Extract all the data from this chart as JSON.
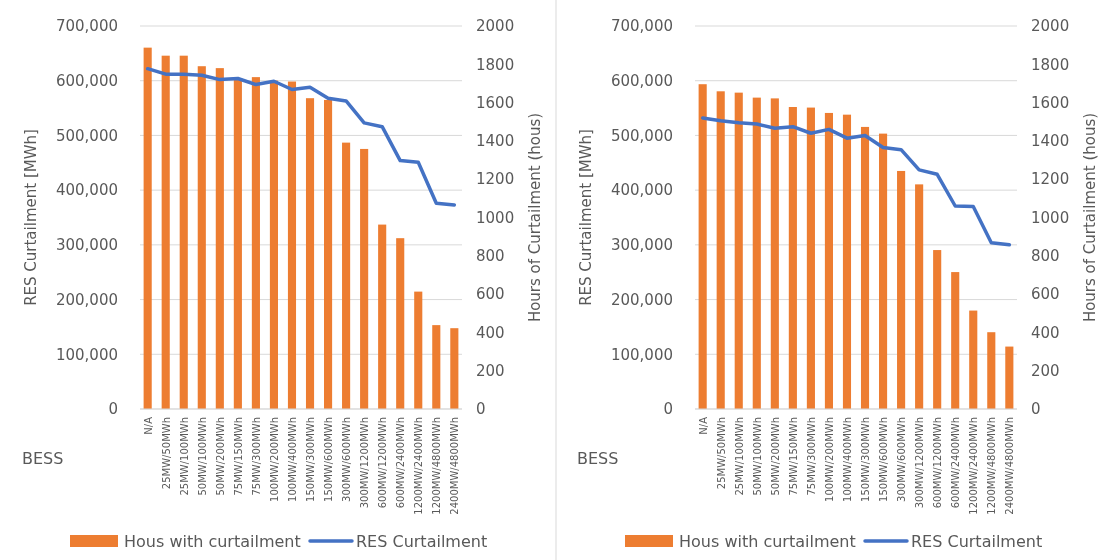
{
  "chart_data": [
    {
      "type": "bar",
      "xlabel": "BESS",
      "ylabel": "RES Curtailment [MWh]",
      "y2label": "Hours of Curtailment (hous)",
      "categories": [
        "N/A",
        "25MW/50MWh",
        "25MW/100MWh",
        "50MW/100MWh",
        "50MW/200MWh",
        "75MW/150MWh",
        "75MW/300MWh",
        "100MW/200MWh",
        "100MW/400MWh",
        "150MW/300MWh",
        "150MW/600MWh",
        "300MW/600MWh",
        "300MW/1200MWh",
        "600MW/1200MWh",
        "600MW/2400MWh",
        "1200MW/2400MWh",
        "1200MW/4800MWh",
        "2400MW/4800MWh"
      ],
      "series": [
        {
          "name": "Hous with curtailment",
          "axis": "y2",
          "color": "#ed7d31",
          "values": [
            1887,
            1845,
            1845,
            1790,
            1780,
            1724,
            1733,
            1715,
            1710,
            1623,
            1614,
            1391,
            1358,
            963,
            892,
            613,
            438,
            422
          ]
        },
        {
          "name": "RES Curtailment",
          "type": "line",
          "color": "#4472c4",
          "values": [
            622000,
            612000,
            612000,
            610000,
            602000,
            604000,
            593000,
            599000,
            584000,
            588000,
            568000,
            563000,
            523000,
            516000,
            454000,
            451000,
            376000,
            373000
          ]
        }
      ],
      "ylim": [
        0,
        700000
      ],
      "yticks": [
        0,
        {
          "value": 100000,
          "label": "100,000"
        },
        {
          "value": 200000,
          "label": "200,000"
        },
        {
          "value": 300000,
          "label": "300,000"
        },
        {
          "value": 400000,
          "label": "400,000"
        },
        {
          "value": 500000,
          "label": "500,000"
        },
        {
          "value": 600000,
          "label": "600,000"
        },
        {
          "value": 700000,
          "label": "700,000"
        }
      ],
      "y2lim": [
        0,
        2000
      ],
      "y2ticks": [
        0,
        200,
        400,
        600,
        800,
        1000,
        1200,
        1400,
        1600,
        1800,
        2000
      ],
      "grid": "y",
      "legend": "bottom"
    },
    {
      "type": "bar",
      "xlabel": "BESS",
      "ylabel": "RES Curtailment [MWh]",
      "y2label": "Hours of Curtailment (hous)",
      "categories": [
        "N/A",
        "25MW/50MWh",
        "25MW/100MWh",
        "50MW/100MWh",
        "50MW/200MWh",
        "75MW/150MWh",
        "75MW/300MWh",
        "100MW/200MWh",
        "100MW/400MWh",
        "150MW/300MWh",
        "150MW/600MWh",
        "300MW/600MWh",
        "300MW/1200MWh",
        "600MW/1200MWh",
        "600MW/2400MWh",
        "1200MW/2400MWh",
        "1200MW/4800MWh",
        "2400MW/4800MWh"
      ],
      "series": [
        {
          "name": "Hous with curtailment",
          "axis": "y2",
          "color": "#ed7d31",
          "values": [
            1696,
            1659,
            1652,
            1626,
            1622,
            1577,
            1574,
            1546,
            1537,
            1473,
            1438,
            1243,
            1173,
            830,
            715,
            514,
            401,
            326
          ]
        },
        {
          "name": "RES Curtailment",
          "type": "line",
          "color": "#4472c4",
          "values": [
            532000,
            527000,
            523000,
            521000,
            513000,
            516000,
            504000,
            511000,
            495000,
            500000,
            478000,
            474000,
            437000,
            429000,
            371000,
            370000,
            304000,
            300000
          ]
        }
      ],
      "ylim": [
        0,
        700000
      ],
      "yticks": [
        0,
        {
          "value": 100000,
          "label": "100,000"
        },
        {
          "value": 200000,
          "label": "200,000"
        },
        {
          "value": 300000,
          "label": "300,000"
        },
        {
          "value": 400000,
          "label": "400,000"
        },
        {
          "value": 500000,
          "label": "500,000"
        },
        {
          "value": 600000,
          "label": "600,000"
        },
        {
          "value": 700000,
          "label": "700,000"
        }
      ],
      "y2lim": [
        0,
        2000
      ],
      "y2ticks": [
        0,
        200,
        400,
        600,
        800,
        1000,
        1200,
        1400,
        1600,
        1800,
        2000
      ],
      "grid": "y",
      "legend": "bottom"
    }
  ]
}
